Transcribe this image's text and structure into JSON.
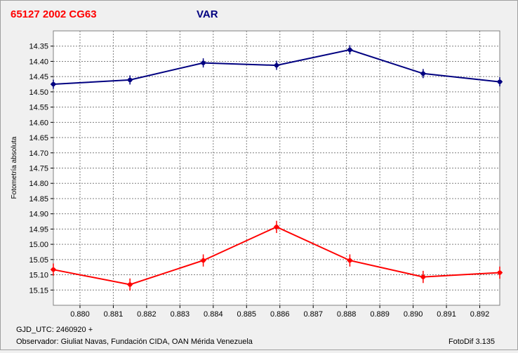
{
  "header": {
    "object_title": "65127 2002 CG63",
    "series_label": "VAR"
  },
  "footer": {
    "gjd_label": "GJD_UTC: 2460920 +",
    "observer": "Observador: Giuliat Navas, Fundación CIDA, OAN Mérida Venezuela",
    "software": "FotoDif 3.135"
  },
  "colors": {
    "title_red": "#ff0000",
    "title_blue": "#000080",
    "series_blue": "#000080",
    "series_red": "#ff0000",
    "grid": "#7f7f7f"
  },
  "chart_data": {
    "type": "line",
    "title": "65127 2002 CG63",
    "ylabel": "Fotometría absoluta",
    "xlabel": "GJD_UTC: 2460920 +",
    "xlim": [
      0.8792,
      0.8926
    ],
    "ylim": [
      14.3,
      15.2
    ],
    "y_inverted": true,
    "grid": true,
    "x_ticks": [
      "0.880",
      "0.881",
      "0.882",
      "0.883",
      "0.884",
      "0.885",
      "0.886",
      "0.887",
      "0.888",
      "0.889",
      "0.890",
      "0.891",
      "0.892"
    ],
    "y_ticks": [
      "14.35",
      "14.40",
      "14.45",
      "14.50",
      "14.55",
      "14.60",
      "14.65",
      "14.70",
      "14.75",
      "14.80",
      "14.85",
      "14.90",
      "14.95",
      "15.00",
      "15.05",
      "15.10",
      "15.15"
    ],
    "series": [
      {
        "name": "VAR",
        "color": "#000080",
        "x": [
          0.8792,
          0.8815,
          0.8837,
          0.8859,
          0.8881,
          0.8903,
          0.8926
        ],
        "y": [
          14.475,
          14.461,
          14.405,
          14.413,
          14.362,
          14.44,
          14.467
        ],
        "err": [
          0.015,
          0.015,
          0.015,
          0.015,
          0.015,
          0.015,
          0.015
        ]
      },
      {
        "color": "#ff0000",
        "x": [
          0.8792,
          0.8815,
          0.8837,
          0.8859,
          0.8881,
          0.8903,
          0.8926
        ],
        "y": [
          15.083,
          15.132,
          15.053,
          14.943,
          15.053,
          15.107,
          15.093
        ],
        "err": [
          0.02,
          0.02,
          0.02,
          0.02,
          0.02,
          0.02,
          0.02
        ]
      }
    ]
  }
}
